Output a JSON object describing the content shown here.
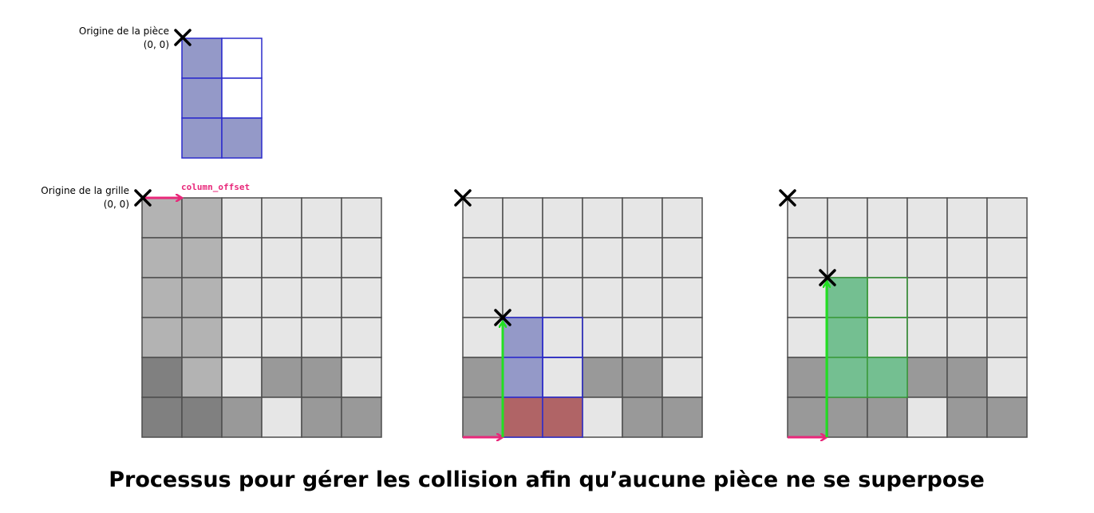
{
  "piece": {
    "origin_label": "Origine de la pièce",
    "origin_coords": "(0, 0)",
    "cells": [
      [
        1,
        0
      ],
      [
        1,
        0
      ],
      [
        1,
        1
      ]
    ]
  },
  "grid_panel": {
    "origin_label": "Origine de la grille",
    "origin_coords": "(0, 0)",
    "offset_label": "column_offset"
  },
  "grids": [
    {
      "cells": [
        [
          2,
          2,
          1,
          1,
          1,
          1
        ],
        [
          2,
          2,
          1,
          1,
          1,
          1
        ],
        [
          2,
          2,
          1,
          1,
          1,
          1
        ],
        [
          2,
          2,
          1,
          1,
          1,
          1
        ],
        [
          4,
          2,
          1,
          3,
          3,
          1
        ],
        [
          4,
          4,
          3,
          1,
          3,
          3
        ]
      ]
    },
    {
      "cells": [
        [
          1,
          1,
          1,
          1,
          1,
          1
        ],
        [
          1,
          1,
          1,
          1,
          1,
          1
        ],
        [
          1,
          1,
          1,
          1,
          1,
          1
        ],
        [
          1,
          1,
          1,
          1,
          1,
          1
        ],
        [
          3,
          1,
          1,
          3,
          3,
          1
        ],
        [
          3,
          3,
          3,
          1,
          3,
          3
        ]
      ],
      "overlay": {
        "row": 3,
        "col": 1,
        "cells": [
          [
            1,
            0
          ],
          [
            1,
            0
          ],
          [
            2,
            2
          ]
        ]
      }
    },
    {
      "cells": [
        [
          1,
          1,
          1,
          1,
          1,
          1
        ],
        [
          1,
          1,
          1,
          1,
          1,
          1
        ],
        [
          1,
          1,
          1,
          1,
          1,
          1
        ],
        [
          1,
          1,
          1,
          1,
          1,
          1
        ],
        [
          3,
          1,
          1,
          3,
          3,
          1
        ],
        [
          3,
          3,
          3,
          1,
          3,
          3
        ]
      ],
      "overlay": {
        "row": 2,
        "col": 1,
        "cells": [
          [
            5,
            0
          ],
          [
            5,
            0
          ],
          [
            5,
            5
          ]
        ]
      }
    }
  ],
  "colors": {
    "empty": "#e6e6e6",
    "grid_line": "#4d4d4d",
    "piece_shade_col": "#b3b3b3",
    "filled": "#999999",
    "filled_dark": "#808080",
    "piece_fill": "#9499c8",
    "piece_line": "#2b2bcc",
    "collision": "#b06466",
    "valid_fill": "#74bf91",
    "valid_line": "#3a9a3a",
    "arrow_offset": "#e8287a",
    "arrow_drop": "#22e022"
  },
  "caption": "Processus pour gérer les collision afin qu’aucune pièce ne se superpose"
}
